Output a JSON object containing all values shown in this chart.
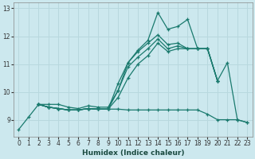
{
  "xlabel": "Humidex (Indice chaleur)",
  "xlim": [
    -0.5,
    23.5
  ],
  "ylim": [
    8.4,
    13.2
  ],
  "bg_color": "#cce8ee",
  "grid_color": "#b8d8de",
  "line_color": "#1a7a6e",
  "xticks": [
    0,
    1,
    2,
    3,
    4,
    5,
    6,
    7,
    8,
    9,
    10,
    11,
    12,
    13,
    14,
    15,
    16,
    17,
    18,
    19,
    20,
    21,
    22,
    23
  ],
  "yticks": [
    9,
    10,
    11,
    12,
    13
  ],
  "lines": [
    {
      "x": [
        0,
        1,
        2,
        3,
        4,
        5,
        6,
        7,
        8,
        9,
        10,
        11,
        12,
        13,
        14,
        15,
        16,
        17,
        18,
        19,
        20,
        21,
        22,
        23
      ],
      "y": [
        8.65,
        9.1,
        9.55,
        9.55,
        9.55,
        9.45,
        9.4,
        9.5,
        9.45,
        9.45,
        10.05,
        11.05,
        11.5,
        11.85,
        12.85,
        12.25,
        12.35,
        12.6,
        11.55,
        11.55,
        10.4,
        11.05,
        9.0,
        8.9
      ]
    },
    {
      "x": [
        2,
        3,
        4,
        5,
        6,
        7,
        8,
        9,
        10,
        11,
        12,
        13,
        14,
        15,
        16,
        17,
        18,
        19,
        20,
        21,
        22,
        23
      ],
      "y": [
        9.55,
        9.45,
        9.4,
        9.35,
        9.35,
        9.4,
        9.38,
        9.38,
        9.38,
        9.35,
        9.35,
        9.35,
        9.35,
        9.35,
        9.35,
        9.35,
        9.35,
        9.2,
        9.0,
        9.0,
        9.0,
        8.9
      ]
    },
    {
      "x": [
        2,
        3,
        4,
        5,
        6,
        7,
        8,
        9,
        10,
        11,
        12,
        13,
        14,
        15,
        16,
        17,
        18,
        19,
        20
      ],
      "y": [
        9.55,
        9.45,
        9.4,
        9.35,
        9.35,
        9.4,
        9.38,
        9.38,
        9.8,
        10.5,
        11.0,
        11.3,
        11.75,
        11.45,
        11.55,
        11.55,
        11.55,
        11.55,
        10.4
      ]
    },
    {
      "x": [
        2,
        3,
        4,
        5,
        6,
        7,
        8,
        9,
        10,
        11,
        12,
        13,
        14,
        15,
        16,
        17,
        18,
        19,
        20
      ],
      "y": [
        9.55,
        9.45,
        9.4,
        9.35,
        9.35,
        9.4,
        9.38,
        9.38,
        10.05,
        10.9,
        11.25,
        11.55,
        11.9,
        11.55,
        11.65,
        11.55,
        11.55,
        11.55,
        10.4
      ]
    },
    {
      "x": [
        2,
        3,
        4,
        5,
        6,
        7,
        8,
        9,
        10,
        11,
        12,
        13,
        14,
        15,
        16,
        17,
        18,
        19,
        20
      ],
      "y": [
        9.55,
        9.45,
        9.4,
        9.35,
        9.35,
        9.4,
        9.38,
        9.38,
        10.3,
        11.05,
        11.45,
        11.75,
        12.05,
        11.7,
        11.75,
        11.55,
        11.55,
        11.55,
        10.4
      ]
    }
  ],
  "marker": "+",
  "markersize": 3.5,
  "linewidth": 0.9
}
